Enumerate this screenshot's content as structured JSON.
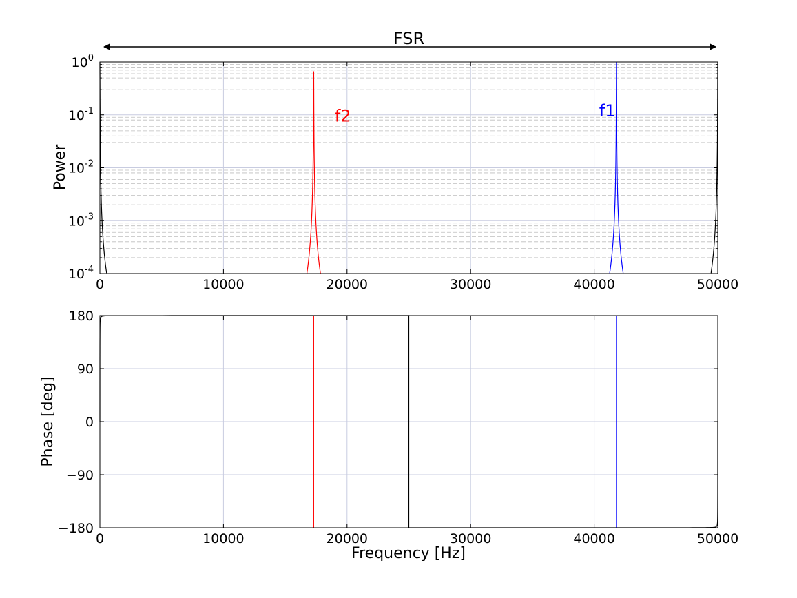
{
  "chart_data": [
    {
      "type": "line",
      "panel": "power",
      "yscale": "log",
      "xlabel": "",
      "ylabel": "Power",
      "xlim": [
        0,
        50000
      ],
      "ylim": [
        0.0001,
        1
      ],
      "xticks": [
        0,
        10000,
        20000,
        30000,
        40000,
        50000
      ],
      "xtick_labels": [
        "0",
        "10000",
        "20000",
        "30000",
        "40000",
        "50000"
      ],
      "yticks": [
        {
          "value": 1,
          "base": "10",
          "exp": "0"
        },
        {
          "value": 0.1,
          "base": "10",
          "exp": "-1"
        },
        {
          "value": 0.01,
          "base": "10",
          "exp": "-2"
        },
        {
          "value": 0.001,
          "base": "10",
          "exp": "-3"
        },
        {
          "value": 0.0001,
          "base": "10",
          "exp": "-4"
        }
      ],
      "grid": true,
      "annotations": [
        {
          "text": "FSR",
          "color": "#000000",
          "kind": "double-arrow",
          "x_from": 0,
          "x_to": 50000
        },
        {
          "text": "f2",
          "color": "#ff0000",
          "x": 19000,
          "y": 0.075
        },
        {
          "text": "f1",
          "color": "#0000ff",
          "x": 40400,
          "y": 0.093
        }
      ],
      "series": [
        {
          "color": "#000000",
          "peak_x": [
            0,
            50000
          ],
          "linewidth_hz": 5.5
        },
        {
          "color": "#ff0000",
          "peak_x": [
            17300
          ],
          "linewidth_hz": 5.5
        },
        {
          "color": "#0000ff",
          "peak_x": [
            41800
          ],
          "linewidth_hz": 5.5
        }
      ]
    },
    {
      "type": "line",
      "panel": "phase",
      "xlabel": "Frequency [Hz]",
      "ylabel": "Phase [deg]",
      "xlim": [
        0,
        50000
      ],
      "ylim": [
        -180,
        180
      ],
      "xticks": [
        0,
        10000,
        20000,
        30000,
        40000,
        50000
      ],
      "xtick_labels": [
        "0",
        "10000",
        "20000",
        "30000",
        "40000",
        "50000"
      ],
      "yticks": [
        180,
        90,
        0,
        -90,
        -180
      ],
      "ytick_labels": [
        "180",
        "90",
        "0",
        "−90",
        "−180"
      ],
      "grid": true,
      "series": [
        {
          "color": "#000000",
          "shape": "phase-sawtooth",
          "jump_x": 25000
        },
        {
          "color": "#ff0000",
          "shape": "vertical-jump",
          "x": 17300
        },
        {
          "color": "#0000ff",
          "shape": "vertical-jump",
          "x": 41800
        }
      ]
    }
  ]
}
